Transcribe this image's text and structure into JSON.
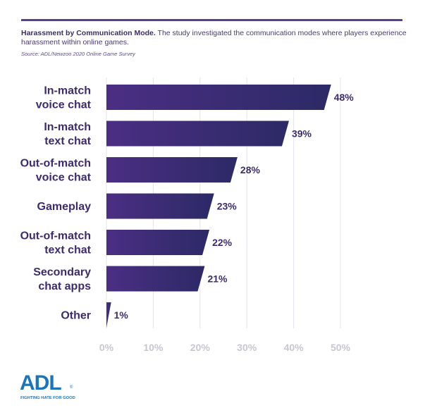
{
  "header": {
    "title_bold": "Harassment by Communication Mode.",
    "title_rest": " The study investigated the communication modes where players experience harassment within online games.",
    "source": "Source: ADL/Newzoo 2020 Online Game Survey"
  },
  "logo": {
    "word": "ADL",
    "tagline": "FIGHTING HATE FOR GOOD",
    "reg": "®"
  },
  "colors": {
    "bar_start": "#4b2e83",
    "bar_end": "#2c2a66",
    "label": "#3d2b6e",
    "grid": "#e6e3ec",
    "tick": "#c9c6d1"
  },
  "chart_data": {
    "type": "bar",
    "orientation": "horizontal",
    "categories": [
      [
        "In-match",
        "voice chat"
      ],
      [
        "In-match",
        "text chat"
      ],
      [
        "Out-of-match",
        "voice chat"
      ],
      [
        "Gameplay"
      ],
      [
        "Out-of-match",
        "text chat"
      ],
      [
        "Secondary",
        "chat apps"
      ],
      [
        "Other"
      ]
    ],
    "values": [
      48,
      39,
      28,
      23,
      22,
      21,
      1
    ],
    "value_labels": [
      "48%",
      "39%",
      "28%",
      "23%",
      "22%",
      "21%",
      "1%"
    ],
    "xlim": [
      0,
      50
    ],
    "xticks": [
      0,
      10,
      20,
      30,
      40,
      50
    ],
    "xtick_labels": [
      "0%",
      "10%",
      "20%",
      "30%",
      "40%",
      "50%"
    ],
    "grid": true,
    "title": "Harassment by Communication Mode"
  }
}
